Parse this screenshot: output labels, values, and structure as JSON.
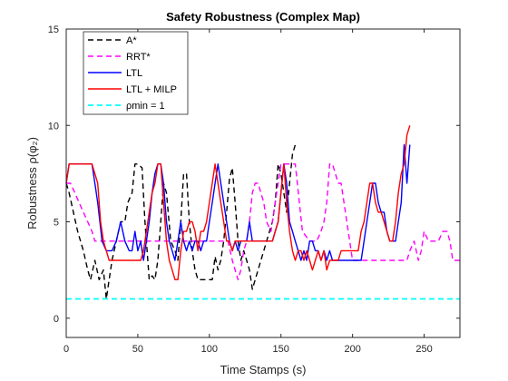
{
  "chart_data": {
    "type": "line",
    "title": "Safety Robustness (Complex Map)",
    "xlabel": "Time Stamps (s)",
    "ylabel": "Robustness ρ(φ₂)",
    "xlim": [
      0,
      275
    ],
    "ylim": [
      -1,
      15
    ],
    "xticks": [
      0,
      50,
      100,
      150,
      200,
      250
    ],
    "yticks": [
      0,
      5,
      10,
      15
    ],
    "grid": false,
    "legend_position": "top-left",
    "series": [
      {
        "name": "A*",
        "color": "#000000",
        "dash": "dashed",
        "x": [
          0,
          2,
          5,
          8,
          12,
          15,
          17,
          20,
          23,
          26,
          28,
          30,
          32,
          35,
          38,
          41,
          43,
          46,
          48,
          50,
          53,
          55,
          58,
          60,
          62,
          64,
          66,
          68,
          70,
          73,
          76,
          78,
          80,
          82,
          84,
          86,
          88,
          90,
          92,
          94,
          96,
          98,
          100,
          102,
          104,
          106,
          108,
          110,
          112,
          114,
          116,
          118,
          120,
          122,
          124,
          126,
          128,
          130,
          132,
          134,
          136,
          138,
          140,
          142,
          144,
          146,
          148,
          150,
          152,
          154,
          156,
          158,
          160
        ],
        "y": [
          7,
          6.5,
          5.5,
          4.5,
          3.5,
          2.5,
          2,
          3,
          2,
          2.5,
          1,
          2,
          3,
          4,
          5,
          5,
          6,
          6.5,
          8,
          8,
          7.8,
          5,
          2,
          2.2,
          2,
          3,
          5,
          7,
          6.5,
          4,
          3.5,
          3,
          5,
          7.5,
          7.5,
          5,
          3.5,
          2.5,
          2,
          2,
          2,
          2,
          2,
          2,
          3.2,
          2.5,
          3,
          4,
          5.5,
          7.2,
          7.8,
          6,
          4,
          3,
          3.5,
          3,
          2.5,
          1.5,
          2,
          2.5,
          3,
          3.5,
          4,
          4.5,
          5,
          6,
          8,
          7.5,
          6.5,
          5.5,
          7,
          8.5,
          9
        ]
      },
      {
        "name": "RRT*",
        "color": "#ff00ff",
        "dash": "dashed",
        "x": [
          0,
          3,
          6,
          9,
          12,
          15,
          18,
          20,
          23,
          25,
          28,
          30,
          33,
          36,
          40,
          45,
          50,
          55,
          60,
          65,
          70,
          75,
          80,
          85,
          90,
          95,
          100,
          105,
          110,
          113,
          116,
          118,
          120,
          122,
          124,
          126,
          128,
          130,
          132,
          134,
          136,
          138,
          140,
          143,
          146,
          150,
          155,
          160,
          165,
          170,
          175,
          178,
          180,
          182,
          184,
          186,
          188,
          190,
          192,
          194,
          196,
          198,
          200,
          203,
          206,
          210,
          215,
          220,
          225,
          230,
          235,
          238,
          240,
          243,
          246,
          248,
          250,
          253,
          256,
          260,
          263,
          266,
          268,
          270,
          275
        ],
        "y": [
          7,
          7,
          6.5,
          6,
          5.5,
          5,
          4.5,
          4,
          4,
          4,
          4,
          4,
          4,
          4,
          4,
          4,
          4,
          4,
          4,
          4,
          4,
          4,
          4,
          4,
          4,
          4,
          4,
          4,
          4,
          4,
          3,
          2.5,
          2,
          2.5,
          3.5,
          4,
          5,
          6.5,
          7,
          7,
          6.5,
          6,
          5,
          4.5,
          6,
          8,
          8,
          8,
          4.5,
          4,
          4,
          4.5,
          5,
          6,
          8,
          8,
          7.5,
          7,
          7,
          6,
          5,
          4,
          3,
          3,
          3,
          3,
          3,
          3,
          3,
          3,
          3,
          3,
          3.5,
          4,
          3,
          3.5,
          4.5,
          4,
          4,
          4,
          4.5,
          4.5,
          4,
          3,
          3
        ]
      },
      {
        "name": "LTL",
        "color": "#0000ff",
        "dash": "solid",
        "x": [
          0,
          2,
          4,
          6,
          10,
          15,
          18,
          20,
          22,
          25,
          28,
          30,
          32,
          35,
          38,
          41,
          44,
          46,
          48,
          50,
          52,
          54,
          56,
          58,
          60,
          62,
          64,
          66,
          68,
          70,
          72,
          74,
          76,
          78,
          80,
          82,
          84,
          86,
          88,
          90,
          92,
          94,
          96,
          98,
          100,
          102,
          104,
          106,
          108,
          110,
          112,
          114,
          116,
          118,
          120,
          122,
          124,
          126,
          128,
          130,
          132,
          134,
          136,
          138,
          140,
          142,
          144,
          146,
          148,
          150,
          152,
          154,
          156,
          158,
          160,
          162,
          164,
          166,
          168,
          170,
          172,
          174,
          176,
          178,
          180,
          182,
          184,
          186,
          188,
          190,
          192,
          194,
          196,
          198,
          200,
          202,
          204,
          206,
          208,
          210,
          212,
          214,
          216,
          218,
          220,
          222,
          224,
          226,
          228,
          230,
          232,
          234,
          236,
          238,
          240
        ],
        "y": [
          7,
          8,
          8,
          8,
          8,
          8,
          8,
          7,
          6,
          4,
          3.5,
          3.5,
          3.5,
          4,
          5,
          4,
          3.5,
          3.5,
          4.5,
          3.5,
          4,
          3,
          4,
          5,
          6.5,
          7.5,
          8,
          8,
          7,
          5,
          4,
          3.5,
          3,
          4,
          5,
          4,
          3.5,
          4,
          3.5,
          4,
          4,
          3.5,
          4,
          4,
          5,
          6,
          7,
          8,
          7,
          6,
          5,
          4,
          3.5,
          4,
          3.5,
          4,
          4,
          4,
          5,
          4,
          4,
          4,
          4,
          4,
          4,
          4,
          4,
          4.5,
          5,
          6.5,
          8,
          7,
          5,
          4.5,
          4,
          3.5,
          3,
          3.5,
          3,
          4,
          4,
          3.5,
          3.5,
          3,
          3.5,
          3,
          3.5,
          3,
          3,
          3,
          3,
          3,
          3,
          3,
          3,
          3,
          3,
          3,
          4,
          5,
          6,
          7,
          7,
          6,
          5.5,
          5.5,
          4.5,
          4,
          4,
          4,
          5,
          6,
          9,
          7,
          9
        ]
      },
      {
        "name": "LTL + MILP",
        "color": "#ff0000",
        "dash": "solid",
        "x": [
          0,
          2,
          4,
          6,
          10,
          15,
          18,
          20,
          22,
          24,
          26,
          28,
          30,
          32,
          35,
          38,
          41,
          44,
          46,
          48,
          50,
          52,
          54,
          56,
          58,
          60,
          62,
          64,
          66,
          68,
          70,
          72,
          74,
          76,
          78,
          80,
          82,
          84,
          86,
          88,
          90,
          92,
          94,
          96,
          98,
          100,
          102,
          104,
          106,
          108,
          110,
          112,
          114,
          116,
          118,
          120,
          122,
          124,
          126,
          128,
          130,
          132,
          134,
          136,
          138,
          140,
          142,
          144,
          146,
          148,
          150,
          152,
          154,
          156,
          158,
          160,
          162,
          164,
          166,
          168,
          170,
          172,
          174,
          176,
          178,
          180,
          182,
          184,
          186,
          188,
          190,
          192,
          194,
          196,
          198,
          200,
          202,
          204,
          206,
          208,
          210,
          212,
          214,
          216,
          218,
          220,
          222,
          224,
          226,
          228,
          230,
          232,
          234,
          236,
          238,
          240
        ],
        "y": [
          7,
          8,
          8,
          8,
          8,
          8,
          8,
          7.5,
          7,
          5,
          4,
          3.5,
          3,
          3,
          3,
          3,
          3,
          3,
          3,
          3,
          3,
          3,
          3.5,
          4.5,
          5.5,
          6.5,
          7,
          8,
          8,
          6,
          4,
          3,
          2.5,
          2,
          2,
          3.5,
          4.5,
          4.5,
          5,
          5,
          4.5,
          3.5,
          4.5,
          4.5,
          5,
          6,
          7,
          8,
          7,
          6,
          5,
          4,
          4,
          3.5,
          4,
          4,
          4,
          4,
          4,
          4,
          4,
          4,
          4,
          4,
          4,
          4,
          4,
          4,
          4.5,
          5,
          6.5,
          8,
          6,
          4.5,
          3.5,
          3,
          3.5,
          3.5,
          3,
          3.5,
          3,
          2.5,
          3,
          3.5,
          3,
          3.5,
          2.5,
          3,
          3,
          3,
          3,
          3.5,
          3.5,
          3.5,
          3.5,
          3.5,
          3.5,
          3.5,
          4.5,
          5,
          6,
          7,
          7,
          6,
          5.5,
          5.5,
          5,
          4.5,
          4,
          4,
          5,
          6.5,
          7.5,
          8,
          9.5,
          10
        ]
      },
      {
        "name": "ρmin = 1",
        "color": "#00ffff",
        "dash": "dashed",
        "x": [
          0,
          275
        ],
        "y": [
          1,
          1
        ]
      }
    ]
  }
}
